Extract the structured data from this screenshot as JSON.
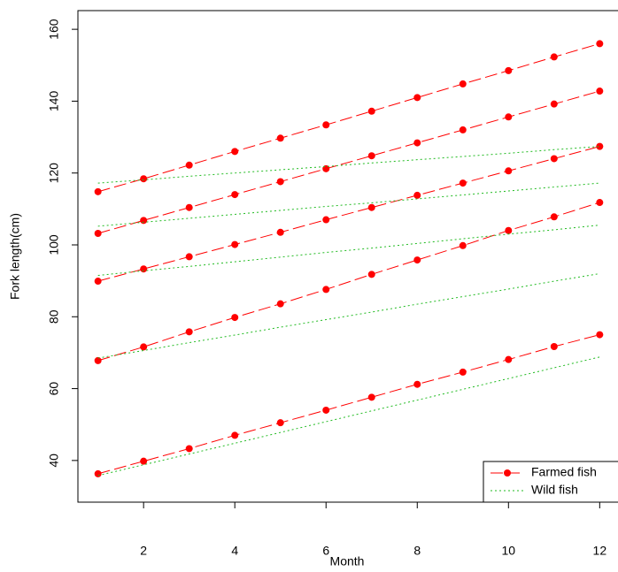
{
  "chart_data": {
    "type": "line",
    "x_label": "Month",
    "y_label": "Fork length(cm)",
    "x": [
      1,
      2,
      3,
      4,
      5,
      6,
      7,
      8,
      9,
      10,
      11,
      12
    ],
    "xlim": [
      0.56,
      12.44
    ],
    "xticks": [
      2,
      4,
      6,
      8,
      10,
      12
    ],
    "ylim": [
      28.4,
      165.2
    ],
    "yticks": [
      40,
      60,
      80,
      100,
      120,
      140,
      160
    ],
    "legend": "bottom-right",
    "series": [
      {
        "name": "Farmed fish",
        "color": "#ff0000",
        "dash": "dashed",
        "markers": true,
        "lines": [
          [
            114.8,
            118.4,
            122.2,
            126.0,
            129.7,
            133.4,
            137.2,
            141.0,
            144.8,
            148.5,
            152.3,
            156.0
          ],
          [
            103.2,
            106.8,
            110.4,
            114.0,
            117.6,
            121.2,
            124.8,
            128.4,
            132.0,
            135.6,
            139.2,
            142.8
          ],
          [
            89.9,
            93.3,
            96.7,
            100.1,
            103.5,
            107.0,
            110.4,
            113.8,
            117.2,
            120.6,
            124.0,
            127.4
          ],
          [
            67.8,
            71.6,
            75.8,
            79.8,
            83.6,
            87.6,
            91.8,
            95.8,
            99.8,
            104.0,
            107.8,
            111.8
          ],
          [
            36.3,
            39.8,
            43.3,
            47.0,
            50.5,
            54.0,
            57.6,
            61.2,
            64.6,
            68.1,
            71.7,
            75.0
          ]
        ]
      },
      {
        "name": "Wild fish",
        "color": "#22bb22",
        "dash": "dotted",
        "markers": false,
        "lines": [
          [
            117.2,
            118.1,
            119.1,
            120.0,
            120.9,
            121.8,
            122.8,
            123.7,
            124.6,
            125.5,
            126.5,
            127.4
          ],
          [
            105.2,
            106.3,
            107.4,
            108.5,
            109.6,
            110.7,
            111.7,
            112.8,
            113.9,
            115.0,
            116.1,
            117.2
          ],
          [
            91.5,
            92.8,
            94.0,
            95.3,
            96.6,
            97.9,
            99.1,
            100.4,
            101.7,
            103.0,
            104.2,
            105.5
          ],
          [
            68.5,
            70.6,
            72.8,
            74.9,
            77.1,
            79.2,
            81.3,
            83.5,
            85.6,
            87.7,
            89.9,
            92.0
          ],
          [
            35.8,
            38.8,
            41.8,
            44.8,
            47.8,
            50.8,
            53.8,
            56.8,
            59.8,
            62.8,
            65.8,
            68.8
          ]
        ]
      }
    ]
  }
}
